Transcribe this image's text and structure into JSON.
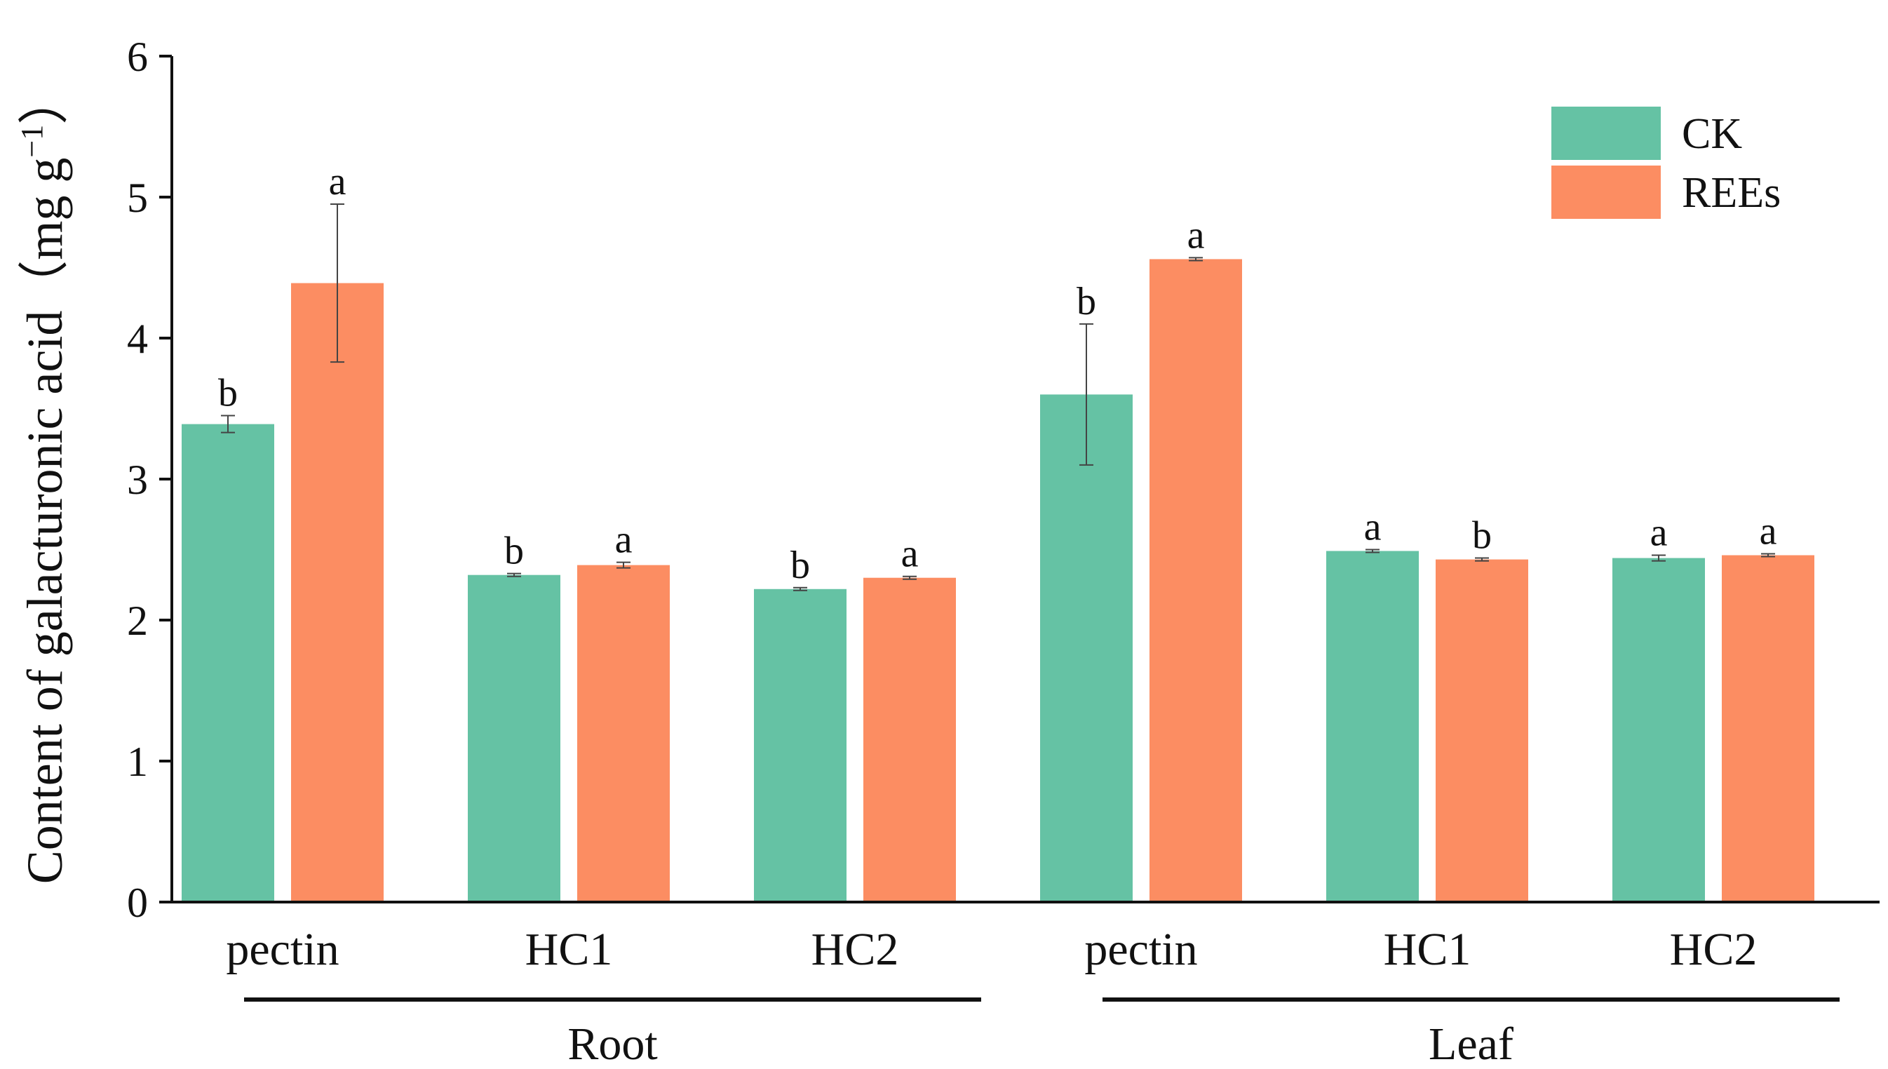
{
  "chart_data": {
    "type": "bar",
    "ylabel": "Content of galacturonic acid（mg g",
    "ylabel_sup": "−1",
    "ylabel_end": "）",
    "ylim": [
      0,
      6
    ],
    "yticks": [
      0,
      1,
      2,
      3,
      4,
      5,
      6
    ],
    "categories": [
      "pectin",
      "HC1",
      "HC2",
      "pectin",
      "HC1",
      "HC2"
    ],
    "groups": [
      {
        "label": "Root",
        "categories": [
          0,
          1,
          2
        ]
      },
      {
        "label": "Leaf",
        "categories": [
          3,
          4,
          5
        ]
      }
    ],
    "legend": {
      "position": "top-right"
    },
    "series": [
      {
        "name": "CK",
        "color": "#65C2A4",
        "values": [
          3.39,
          2.32,
          2.22,
          3.6,
          2.49,
          2.44
        ],
        "errors": [
          0.06,
          0.01,
          0.01,
          0.5,
          0.01,
          0.02
        ],
        "significance": [
          "b",
          "b",
          "b",
          "b",
          "a",
          "a"
        ]
      },
      {
        "name": "REEs",
        "color": "#FC8D62",
        "values": [
          4.39,
          2.39,
          2.3,
          4.56,
          2.43,
          2.46
        ],
        "errors": [
          0.56,
          0.02,
          0.01,
          0.01,
          0.01,
          0.01
        ],
        "significance": [
          "a",
          "a",
          "a",
          "a",
          "b",
          "a"
        ]
      }
    ]
  }
}
